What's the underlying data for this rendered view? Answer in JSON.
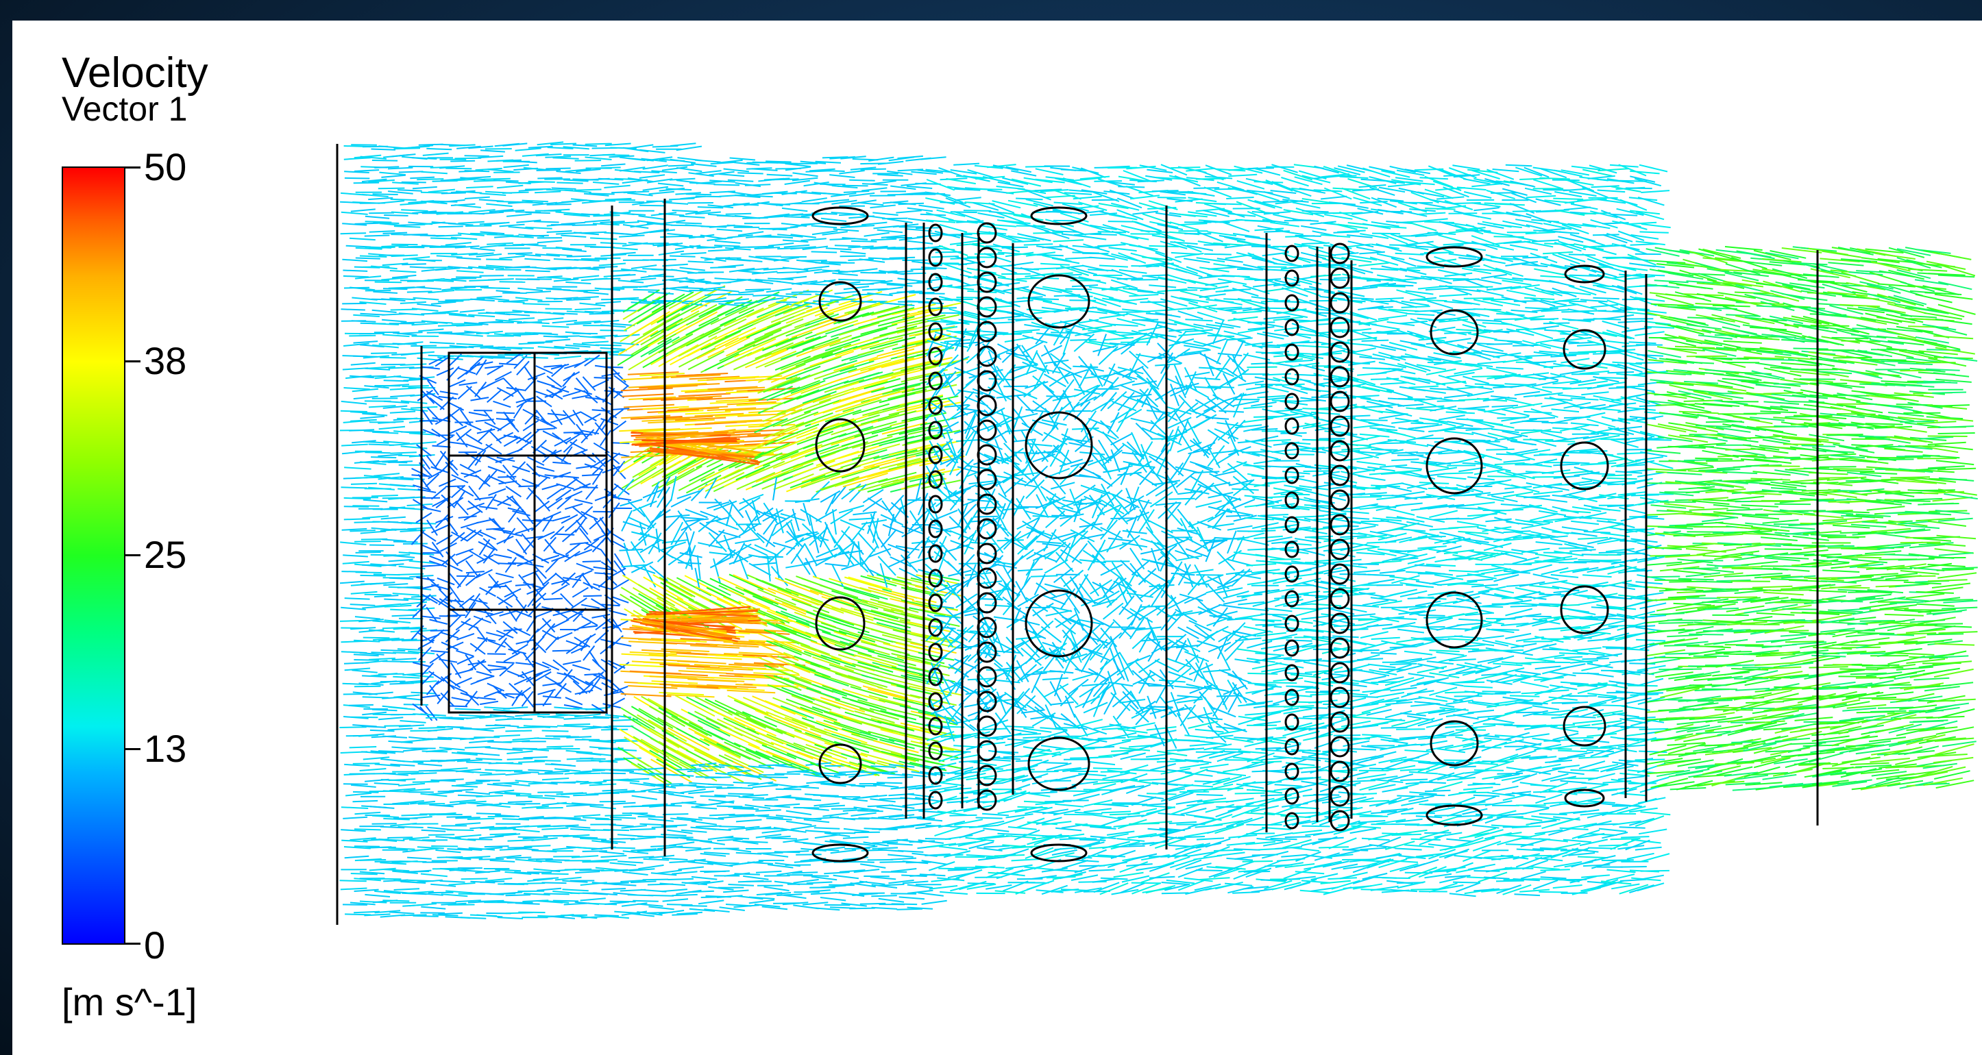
{
  "legend": {
    "title_line1": "Velocity",
    "title_line2": "Vector 1",
    "ticks": [
      "50",
      "38",
      "25",
      "13",
      "0"
    ],
    "units": "[m s^-1]",
    "range": [
      0,
      50
    ],
    "colormap": [
      "#0000ff",
      "#00b4ff",
      "#00f0f0",
      "#20ff20",
      "#ffff00",
      "#ff6000",
      "#ff0000"
    ]
  },
  "background_color": "#0f2f4f",
  "panel_color": "#ffffff"
}
